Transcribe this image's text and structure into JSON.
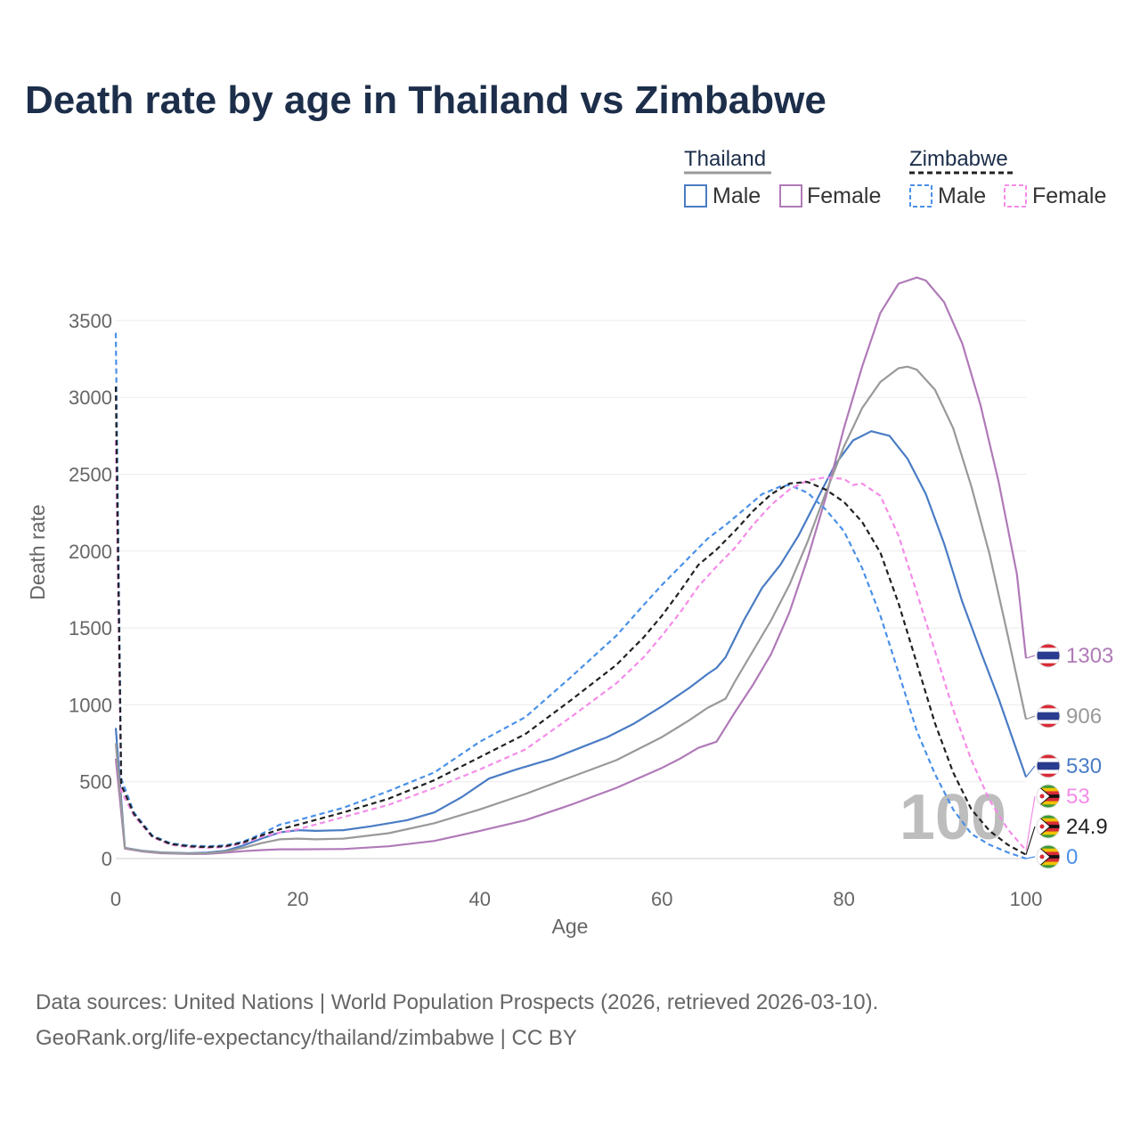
{
  "title": "Death rate by age in Thailand vs Zimbabwe",
  "source_line1": "Data sources: United Nations | World Population Prospects (2026, retrieved 2026-03-10).",
  "source_line2": "GeoRank.org/life-expectancy/thailand/zimbabwe | CC BY",
  "legend": {
    "group1": "Thailand",
    "group2": "Zimbabwe",
    "male": "Male",
    "female": "Female"
  },
  "watermark": "100",
  "chart_data": {
    "type": "line",
    "xlabel": "Age",
    "ylabel": "Death rate",
    "xlim": [
      0,
      100
    ],
    "ylim": [
      0,
      3800
    ],
    "x_ticks": [
      "0",
      "20",
      "40",
      "60",
      "80",
      "100"
    ],
    "y_ticks": [
      "0",
      "500",
      "1000",
      "1500",
      "2000",
      "2500",
      "3000",
      "3500"
    ],
    "grid": true,
    "colors": {
      "thailand_male": "#4a7cc4",
      "thailand_female": "#b07ab8",
      "thailand_total": "#999999",
      "zimbabwe_male": "#4a90e8",
      "zimbabwe_female": "#f48ce8",
      "zimbabwe_total": "#222222"
    },
    "series": [
      {
        "name": "Thailand Male",
        "key": "thailand_male",
        "dashed": false,
        "end_label": "530",
        "points": [
          [
            0,
            850
          ],
          [
            1,
            70
          ],
          [
            3,
            50
          ],
          [
            5,
            40
          ],
          [
            8,
            35
          ],
          [
            10,
            38
          ],
          [
            12,
            50
          ],
          [
            14,
            85
          ],
          [
            16,
            130
          ],
          [
            18,
            170
          ],
          [
            20,
            185
          ],
          [
            22,
            180
          ],
          [
            25,
            185
          ],
          [
            28,
            210
          ],
          [
            32,
            250
          ],
          [
            35,
            300
          ],
          [
            38,
            400
          ],
          [
            41,
            520
          ],
          [
            44,
            580
          ],
          [
            48,
            650
          ],
          [
            51,
            720
          ],
          [
            54,
            790
          ],
          [
            57,
            880
          ],
          [
            60,
            990
          ],
          [
            63,
            1110
          ],
          [
            65,
            1200
          ],
          [
            66,
            1240
          ],
          [
            67,
            1310
          ],
          [
            69,
            1550
          ],
          [
            71,
            1760
          ],
          [
            73,
            1910
          ],
          [
            75,
            2100
          ],
          [
            77,
            2330
          ],
          [
            79,
            2560
          ],
          [
            81,
            2720
          ],
          [
            83,
            2780
          ],
          [
            85,
            2750
          ],
          [
            87,
            2600
          ],
          [
            89,
            2370
          ],
          [
            91,
            2050
          ],
          [
            93,
            1670
          ],
          [
            95,
            1350
          ],
          [
            97,
            1040
          ],
          [
            99,
            700
          ],
          [
            100,
            530
          ]
        ]
      },
      {
        "name": "Thailand Female",
        "key": "thailand_female",
        "dashed": false,
        "end_label": "1303",
        "points": [
          [
            0,
            650
          ],
          [
            1,
            65
          ],
          [
            3,
            45
          ],
          [
            5,
            35
          ],
          [
            8,
            30
          ],
          [
            10,
            30
          ],
          [
            12,
            38
          ],
          [
            14,
            48
          ],
          [
            16,
            55
          ],
          [
            18,
            60
          ],
          [
            20,
            60
          ],
          [
            25,
            62
          ],
          [
            30,
            80
          ],
          [
            35,
            115
          ],
          [
            40,
            180
          ],
          [
            45,
            250
          ],
          [
            50,
            350
          ],
          [
            55,
            460
          ],
          [
            60,
            590
          ],
          [
            62,
            650
          ],
          [
            64,
            720
          ],
          [
            66,
            760
          ],
          [
            68,
            950
          ],
          [
            70,
            1130
          ],
          [
            72,
            1330
          ],
          [
            74,
            1600
          ],
          [
            76,
            1950
          ],
          [
            78,
            2350
          ],
          [
            80,
            2800
          ],
          [
            82,
            3200
          ],
          [
            84,
            3550
          ],
          [
            86,
            3740
          ],
          [
            88,
            3780
          ],
          [
            89,
            3760
          ],
          [
            91,
            3620
          ],
          [
            93,
            3350
          ],
          [
            95,
            2950
          ],
          [
            97,
            2450
          ],
          [
            99,
            1850
          ],
          [
            100,
            1303
          ]
        ]
      },
      {
        "name": "Thailand Total",
        "key": "thailand_total",
        "dashed": false,
        "end_label": "906",
        "points": [
          [
            0,
            750
          ],
          [
            1,
            68
          ],
          [
            3,
            48
          ],
          [
            5,
            38
          ],
          [
            8,
            33
          ],
          [
            10,
            34
          ],
          [
            12,
            45
          ],
          [
            14,
            70
          ],
          [
            16,
            100
          ],
          [
            18,
            125
          ],
          [
            20,
            130
          ],
          [
            22,
            125
          ],
          [
            25,
            130
          ],
          [
            30,
            165
          ],
          [
            35,
            230
          ],
          [
            40,
            320
          ],
          [
            45,
            420
          ],
          [
            50,
            530
          ],
          [
            55,
            640
          ],
          [
            60,
            790
          ],
          [
            63,
            900
          ],
          [
            65,
            980
          ],
          [
            67,
            1040
          ],
          [
            68,
            1150
          ],
          [
            70,
            1350
          ],
          [
            72,
            1550
          ],
          [
            74,
            1780
          ],
          [
            76,
            2060
          ],
          [
            78,
            2380
          ],
          [
            80,
            2680
          ],
          [
            82,
            2930
          ],
          [
            84,
            3100
          ],
          [
            86,
            3190
          ],
          [
            87,
            3200
          ],
          [
            88,
            3180
          ],
          [
            90,
            3050
          ],
          [
            92,
            2800
          ],
          [
            94,
            2420
          ],
          [
            96,
            1980
          ],
          [
            98,
            1450
          ],
          [
            100,
            906
          ]
        ]
      },
      {
        "name": "Zimbabwe Male",
        "key": "zimbabwe_male",
        "dashed": true,
        "end_label": "0",
        "points": [
          [
            0,
            3420
          ],
          [
            0.6,
            520
          ],
          [
            2,
            300
          ],
          [
            4,
            150
          ],
          [
            6,
            100
          ],
          [
            8,
            85
          ],
          [
            10,
            80
          ],
          [
            12,
            85
          ],
          [
            14,
            110
          ],
          [
            16,
            160
          ],
          [
            18,
            220
          ],
          [
            20,
            250
          ],
          [
            25,
            330
          ],
          [
            30,
            440
          ],
          [
            35,
            560
          ],
          [
            40,
            760
          ],
          [
            45,
            920
          ],
          [
            50,
            1180
          ],
          [
            55,
            1450
          ],
          [
            58,
            1650
          ],
          [
            60,
            1780
          ],
          [
            63,
            1960
          ],
          [
            65,
            2080
          ],
          [
            67,
            2170
          ],
          [
            69,
            2270
          ],
          [
            71,
            2370
          ],
          [
            73,
            2420
          ],
          [
            74,
            2430
          ],
          [
            76,
            2380
          ],
          [
            78,
            2270
          ],
          [
            80,
            2130
          ],
          [
            82,
            1890
          ],
          [
            84,
            1580
          ],
          [
            86,
            1210
          ],
          [
            88,
            830
          ],
          [
            90,
            550
          ],
          [
            92,
            320
          ],
          [
            94,
            160
          ],
          [
            96,
            90
          ],
          [
            98,
            40
          ],
          [
            100,
            0
          ]
        ]
      },
      {
        "name": "Zimbabwe Female",
        "key": "zimbabwe_female",
        "dashed": true,
        "end_label": "53",
        "points": [
          [
            0,
            2720
          ],
          [
            0.6,
            440
          ],
          [
            2,
            280
          ],
          [
            4,
            140
          ],
          [
            6,
            90
          ],
          [
            8,
            75
          ],
          [
            10,
            70
          ],
          [
            12,
            75
          ],
          [
            14,
            100
          ],
          [
            16,
            140
          ],
          [
            18,
            170
          ],
          [
            20,
            190
          ],
          [
            25,
            270
          ],
          [
            30,
            350
          ],
          [
            35,
            460
          ],
          [
            40,
            580
          ],
          [
            45,
            710
          ],
          [
            50,
            920
          ],
          [
            55,
            1140
          ],
          [
            58,
            1310
          ],
          [
            60,
            1450
          ],
          [
            62,
            1600
          ],
          [
            64,
            1770
          ],
          [
            66,
            1900
          ],
          [
            68,
            2020
          ],
          [
            70,
            2170
          ],
          [
            72,
            2300
          ],
          [
            74,
            2400
          ],
          [
            76,
            2460
          ],
          [
            78,
            2480
          ],
          [
            80,
            2470
          ],
          [
            81,
            2430
          ],
          [
            82,
            2440
          ],
          [
            84,
            2360
          ],
          [
            86,
            2100
          ],
          [
            88,
            1730
          ],
          [
            90,
            1350
          ],
          [
            92,
            970
          ],
          [
            94,
            640
          ],
          [
            96,
            380
          ],
          [
            98,
            190
          ],
          [
            100,
            53
          ]
        ]
      },
      {
        "name": "Zimbabwe Total",
        "key": "zimbabwe_total",
        "dashed": true,
        "end_label": "24.9",
        "points": [
          [
            0,
            3070
          ],
          [
            0.6,
            480
          ],
          [
            2,
            290
          ],
          [
            4,
            145
          ],
          [
            6,
            95
          ],
          [
            8,
            80
          ],
          [
            10,
            75
          ],
          [
            12,
            80
          ],
          [
            14,
            105
          ],
          [
            16,
            150
          ],
          [
            18,
            190
          ],
          [
            20,
            220
          ],
          [
            25,
            300
          ],
          [
            30,
            390
          ],
          [
            35,
            510
          ],
          [
            40,
            660
          ],
          [
            45,
            810
          ],
          [
            50,
            1030
          ],
          [
            55,
            1260
          ],
          [
            58,
            1440
          ],
          [
            60,
            1580
          ],
          [
            62,
            1740
          ],
          [
            64,
            1910
          ],
          [
            66,
            2010
          ],
          [
            68,
            2130
          ],
          [
            70,
            2260
          ],
          [
            72,
            2370
          ],
          [
            74,
            2440
          ],
          [
            76,
            2450
          ],
          [
            78,
            2400
          ],
          [
            80,
            2320
          ],
          [
            82,
            2190
          ],
          [
            84,
            1990
          ],
          [
            86,
            1660
          ],
          [
            88,
            1270
          ],
          [
            90,
            880
          ],
          [
            92,
            560
          ],
          [
            94,
            320
          ],
          [
            96,
            180
          ],
          [
            98,
            90
          ],
          [
            100,
            24.9
          ]
        ]
      }
    ]
  }
}
